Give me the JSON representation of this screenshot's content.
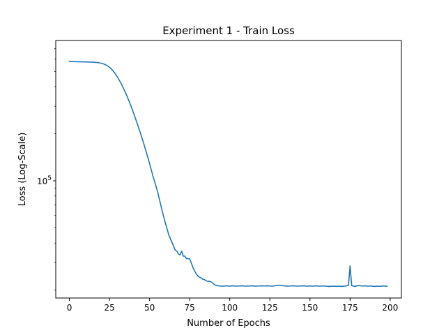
{
  "chart_data": {
    "type": "line",
    "title": "Experiment 1 - Train Loss",
    "xlabel": "Number of Epochs",
    "ylabel": "Loss (Log-Scale)",
    "xscale": "linear",
    "yscale": "log",
    "xlim": [
      -8.5,
      207
    ],
    "ylim": [
      17800,
      790000
    ],
    "grid": false,
    "legend": "none",
    "x_ticks": [
      0,
      25,
      50,
      75,
      100,
      125,
      150,
      175,
      200
    ],
    "x_tick_labels": [
      "0",
      "25",
      "50",
      "75",
      "100",
      "125",
      "150",
      "175",
      "200"
    ],
    "y_ticks": [
      100000
    ],
    "y_tick_base": "10",
    "y_tick_exp": "5",
    "y_minor_ticks": [
      20000,
      30000,
      40000,
      50000,
      60000,
      70000,
      80000,
      90000,
      200000,
      300000,
      400000,
      500000,
      600000,
      700000
    ],
    "series": [
      {
        "name": "",
        "color": "#1f77b4",
        "x": [
          0,
          5,
          10,
          15,
          18,
          20,
          22,
          24,
          26,
          28,
          30,
          32,
          34,
          36,
          38,
          40,
          42,
          44,
          46,
          48,
          50,
          52,
          54,
          55,
          56,
          57,
          58,
          60,
          62,
          64,
          66,
          67,
          68,
          69,
          70,
          71,
          72,
          73,
          74,
          75,
          76,
          77,
          78,
          79,
          80,
          81,
          82,
          83,
          84,
          85,
          86,
          88,
          90,
          91,
          92,
          93,
          94,
          95,
          96,
          98,
          100,
          102,
          104,
          106,
          108,
          110,
          112,
          114,
          116,
          118,
          120,
          122,
          124,
          126,
          128,
          130,
          132,
          134,
          136,
          138,
          140,
          142,
          144,
          146,
          148,
          150,
          152,
          154,
          156,
          158,
          160,
          162,
          164,
          166,
          168,
          170,
          172,
          173,
          174,
          175,
          176,
          177,
          178,
          180,
          182,
          184,
          186,
          188,
          190,
          192,
          194,
          196,
          198
        ],
        "y": [
          580000,
          578000,
          576000,
          574000,
          570000,
          565000,
          556000,
          542000,
          522000,
          494000,
          461000,
          424000,
          385000,
          347000,
          308000,
          272000,
          237000,
          206000,
          178000,
          152000,
          129000,
          108000,
          92500,
          85000,
          77200,
          70000,
          63200,
          53000,
          45000,
          40300,
          36000,
          35500,
          34000,
          33600,
          35500,
          33000,
          33000,
          31800,
          31800,
          31700,
          29800,
          28000,
          26600,
          25500,
          24700,
          24200,
          24000,
          23500,
          23400,
          23000,
          22800,
          22700,
          21900,
          21500,
          21400,
          21300,
          21250,
          21200,
          21200,
          21300,
          21200,
          21300,
          21200,
          21250,
          21300,
          21200,
          21250,
          21300,
          21200,
          21250,
          21300,
          21250,
          21300,
          21200,
          21300,
          21500,
          21400,
          21300,
          21200,
          21250,
          21300,
          21200,
          21250,
          21300,
          21200,
          21250,
          21200,
          21300,
          21200,
          21250,
          21200,
          21100,
          21200,
          21150,
          21200,
          21100,
          21250,
          21300,
          21500,
          28600,
          21400,
          21200,
          21100,
          21400,
          21250,
          21300,
          21200,
          21250,
          21100,
          21200,
          21150,
          21250,
          21150
        ]
      }
    ]
  }
}
